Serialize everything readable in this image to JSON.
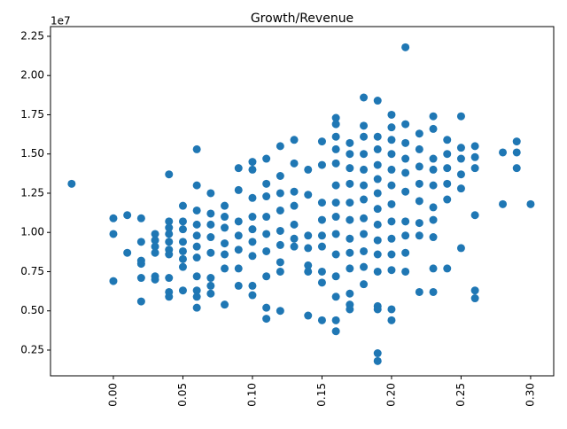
{
  "chart_data": {
    "type": "scatter",
    "title": "Growth/Revenue",
    "y_offset_label": "1e7",
    "color": "#1f77b4",
    "xlim": [
      -0.0452,
      0.3166
    ],
    "ylim": [
      860000,
      23120000
    ],
    "xticks": [
      {
        "value": 0,
        "label": "0.00"
      },
      {
        "value": 0.05,
        "label": "0.05"
      },
      {
        "value": 0.1,
        "label": "0.10"
      },
      {
        "value": 0.15,
        "label": "0.15"
      },
      {
        "value": 0.2,
        "label": "0.20"
      },
      {
        "value": 0.25,
        "label": "0.25"
      },
      {
        "value": 0.3,
        "label": "0.30"
      }
    ],
    "yticks": [
      {
        "value": 2500000,
        "label": "0.25"
      },
      {
        "value": 5000000,
        "label": "0.50"
      },
      {
        "value": 7500000,
        "label": "0.75"
      },
      {
        "value": 10000000,
        "label": "1.00"
      },
      {
        "value": 12500000,
        "label": "1.25"
      },
      {
        "value": 15000000,
        "label": "1.50"
      },
      {
        "value": 17500000,
        "label": "1.75"
      },
      {
        "value": 20000000,
        "label": "2.00"
      },
      {
        "value": 22500000,
        "label": "2.25"
      }
    ],
    "x": [
      -0.03,
      0,
      0,
      0,
      0.01,
      0.01,
      0.02,
      0.02,
      0.02,
      0.02,
      0.02,
      0.02,
      0.03,
      0.03,
      0.03,
      0.03,
      0.03,
      0.03,
      0.04,
      0.04,
      0.04,
      0.04,
      0.04,
      0.04,
      0.04,
      0.04,
      0.04,
      0.04,
      0.05,
      0.05,
      0.05,
      0.05,
      0.05,
      0.05,
      0.05,
      0.05,
      0.06,
      0.06,
      0.06,
      0.06,
      0.06,
      0.06,
      0.06,
      0.06,
      0.06,
      0.06,
      0.06,
      0.07,
      0.07,
      0.07,
      0.07,
      0.07,
      0.07,
      0.07,
      0.07,
      0.08,
      0.08,
      0.08,
      0.08,
      0.08,
      0.08,
      0.08,
      0.09,
      0.09,
      0.09,
      0.09,
      0.09,
      0.09,
      0.09,
      0.1,
      0.1,
      0.1,
      0.1,
      0.1,
      0.1,
      0.1,
      0.1,
      0.1,
      0.11,
      0.11,
      0.11,
      0.11,
      0.11,
      0.11,
      0.11,
      0.11,
      0.11,
      0.12,
      0.12,
      0.12,
      0.12,
      0.12,
      0.12,
      0.12,
      0.12,
      0.12,
      0.13,
      0.13,
      0.13,
      0.13,
      0.13,
      0.13,
      0.13,
      0.14,
      0.14,
      0.14,
      0.14,
      0.14,
      0.14,
      0.14,
      0.15,
      0.15,
      0.15,
      0.15,
      0.15,
      0.15,
      0.15,
      0.15,
      0.15,
      0.16,
      0.16,
      0.16,
      0.16,
      0.16,
      0.16,
      0.16,
      0.16,
      0.16,
      0.16,
      0.16,
      0.16,
      0.16,
      0.16,
      0.17,
      0.17,
      0.17,
      0.17,
      0.17,
      0.17,
      0.17,
      0.17,
      0.17,
      0.17,
      0.17,
      0.17,
      0.18,
      0.18,
      0.18,
      0.18,
      0.18,
      0.18,
      0.18,
      0.18,
      0.18,
      0.18,
      0.18,
      0.18,
      0.19,
      0.19,
      0.19,
      0.19,
      0.19,
      0.19,
      0.19,
      0.19,
      0.19,
      0.19,
      0.19,
      0.19,
      0.19,
      0.19,
      0.19,
      0.2,
      0.2,
      0.2,
      0.2,
      0.2,
      0.2,
      0.2,
      0.2,
      0.2,
      0.2,
      0.2,
      0.2,
      0.2,
      0.21,
      0.21,
      0.21,
      0.21,
      0.21,
      0.21,
      0.21,
      0.21,
      0.21,
      0.21,
      0.22,
      0.22,
      0.22,
      0.22,
      0.22,
      0.22,
      0.22,
      0.22,
      0.23,
      0.23,
      0.23,
      0.23,
      0.23,
      0.23,
      0.23,
      0.23,
      0.23,
      0.23,
      0.24,
      0.24,
      0.24,
      0.24,
      0.24,
      0.24,
      0.25,
      0.25,
      0.25,
      0.25,
      0.25,
      0.25,
      0.26,
      0.26,
      0.26,
      0.26,
      0.26,
      0.26,
      0.28,
      0.28,
      0.29,
      0.29,
      0.29,
      0.3
    ],
    "y": [
      13100000,
      10900000,
      9900000,
      6900000,
      11100000,
      8700000,
      10900000,
      9400000,
      8200000,
      8000000,
      7100000,
      5600000,
      9900000,
      9500000,
      9100000,
      8700000,
      7200000,
      7000000,
      13700000,
      10700000,
      10300000,
      9900000,
      9400000,
      8900000,
      8600000,
      7100000,
      6200000,
      5900000,
      11700000,
      10700000,
      10200000,
      9400000,
      8800000,
      8300000,
      7800000,
      6300000,
      15300000,
      13000000,
      11400000,
      10500000,
      9800000,
      9100000,
      8400000,
      7200000,
      6300000,
      5900000,
      5200000,
      12500000,
      11200000,
      10500000,
      9700000,
      8700000,
      7100000,
      6600000,
      6100000,
      11700000,
      11000000,
      10300000,
      9300000,
      8600000,
      7700000,
      5400000,
      14100000,
      12700000,
      10700000,
      9800000,
      8900000,
      7700000,
      6600000,
      14500000,
      14000000,
      12200000,
      11000000,
      10200000,
      9400000,
      8500000,
      6600000,
      6000000,
      14700000,
      13100000,
      12300000,
      11000000,
      9900000,
      8800000,
      7200000,
      5200000,
      4500000,
      15500000,
      13600000,
      12500000,
      11400000,
      10100000,
      9200000,
      8100000,
      7500000,
      5000000,
      15900000,
      14400000,
      12600000,
      11700000,
      10500000,
      9600000,
      9100000,
      14000000,
      12400000,
      9800000,
      9000000,
      7900000,
      7500000,
      4700000,
      15800000,
      14300000,
      11900000,
      10800000,
      9800000,
      9100000,
      7500000,
      6800000,
      4400000,
      17300000,
      16900000,
      16100000,
      15300000,
      14400000,
      13000000,
      11900000,
      11000000,
      9900000,
      8600000,
      7200000,
      5900000,
      4400000,
      3700000,
      15700000,
      15000000,
      14100000,
      13100000,
      11900000,
      10800000,
      9600000,
      8700000,
      7700000,
      6100000,
      5400000,
      5100000,
      18600000,
      16800000,
      16100000,
      15000000,
      14000000,
      13000000,
      12100000,
      10900000,
      9900000,
      8800000,
      7800000,
      6700000,
      18400000,
      16100000,
      15300000,
      14300000,
      13400000,
      12500000,
      11500000,
      10500000,
      9500000,
      8600000,
      7500000,
      5300000,
      5100000,
      2300000,
      1800000,
      17500000,
      16700000,
      15900000,
      15000000,
      14000000,
      13000000,
      11800000,
      10700000,
      9600000,
      8600000,
      7600000,
      5100000,
      4400000,
      21800000,
      16900000,
      15700000,
      14700000,
      13800000,
      12600000,
      10700000,
      9800000,
      8700000,
      7500000,
      16300000,
      15300000,
      14200000,
      13100000,
      12000000,
      10600000,
      9800000,
      6200000,
      17400000,
      16600000,
      14700000,
      14000000,
      13000000,
      11600000,
      10800000,
      9700000,
      7700000,
      6200000,
      15900000,
      15000000,
      14100000,
      13100000,
      12100000,
      7700000,
      17400000,
      15400000,
      14700000,
      13700000,
      12800000,
      9000000,
      15500000,
      14800000,
      14100000,
      11100000,
      6300000,
      5800000,
      15100000,
      11800000,
      15800000,
      15100000,
      14100000,
      11800000
    ]
  }
}
